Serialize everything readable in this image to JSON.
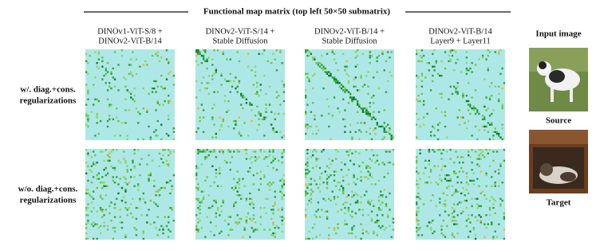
{
  "header": {
    "title": "Functional map matrix (top left 50×50 submatrix)"
  },
  "columns": [
    {
      "lines": [
        "DINOv1-ViT-S/8 +",
        "DINOv2-ViT-B/14"
      ]
    },
    {
      "lines": [
        "DINOv2-ViT-S/14 +",
        "Stable Diffusion"
      ]
    },
    {
      "lines": [
        "DINOv2-ViT-B/14 +",
        "Stable Diffusion"
      ]
    },
    {
      "lines": [
        "DINOv2-ViT-B/14",
        "Layer9 + Layer11"
      ]
    }
  ],
  "rows": [
    {
      "lines": [
        "w/. diag.+cons.",
        "regularizations"
      ]
    },
    {
      "lines": [
        "w/o. diag.+cons.",
        "regularizations"
      ]
    }
  ],
  "input": {
    "title": "Input image",
    "images": [
      {
        "label": "Source"
      },
      {
        "label": "Target"
      }
    ]
  }
}
